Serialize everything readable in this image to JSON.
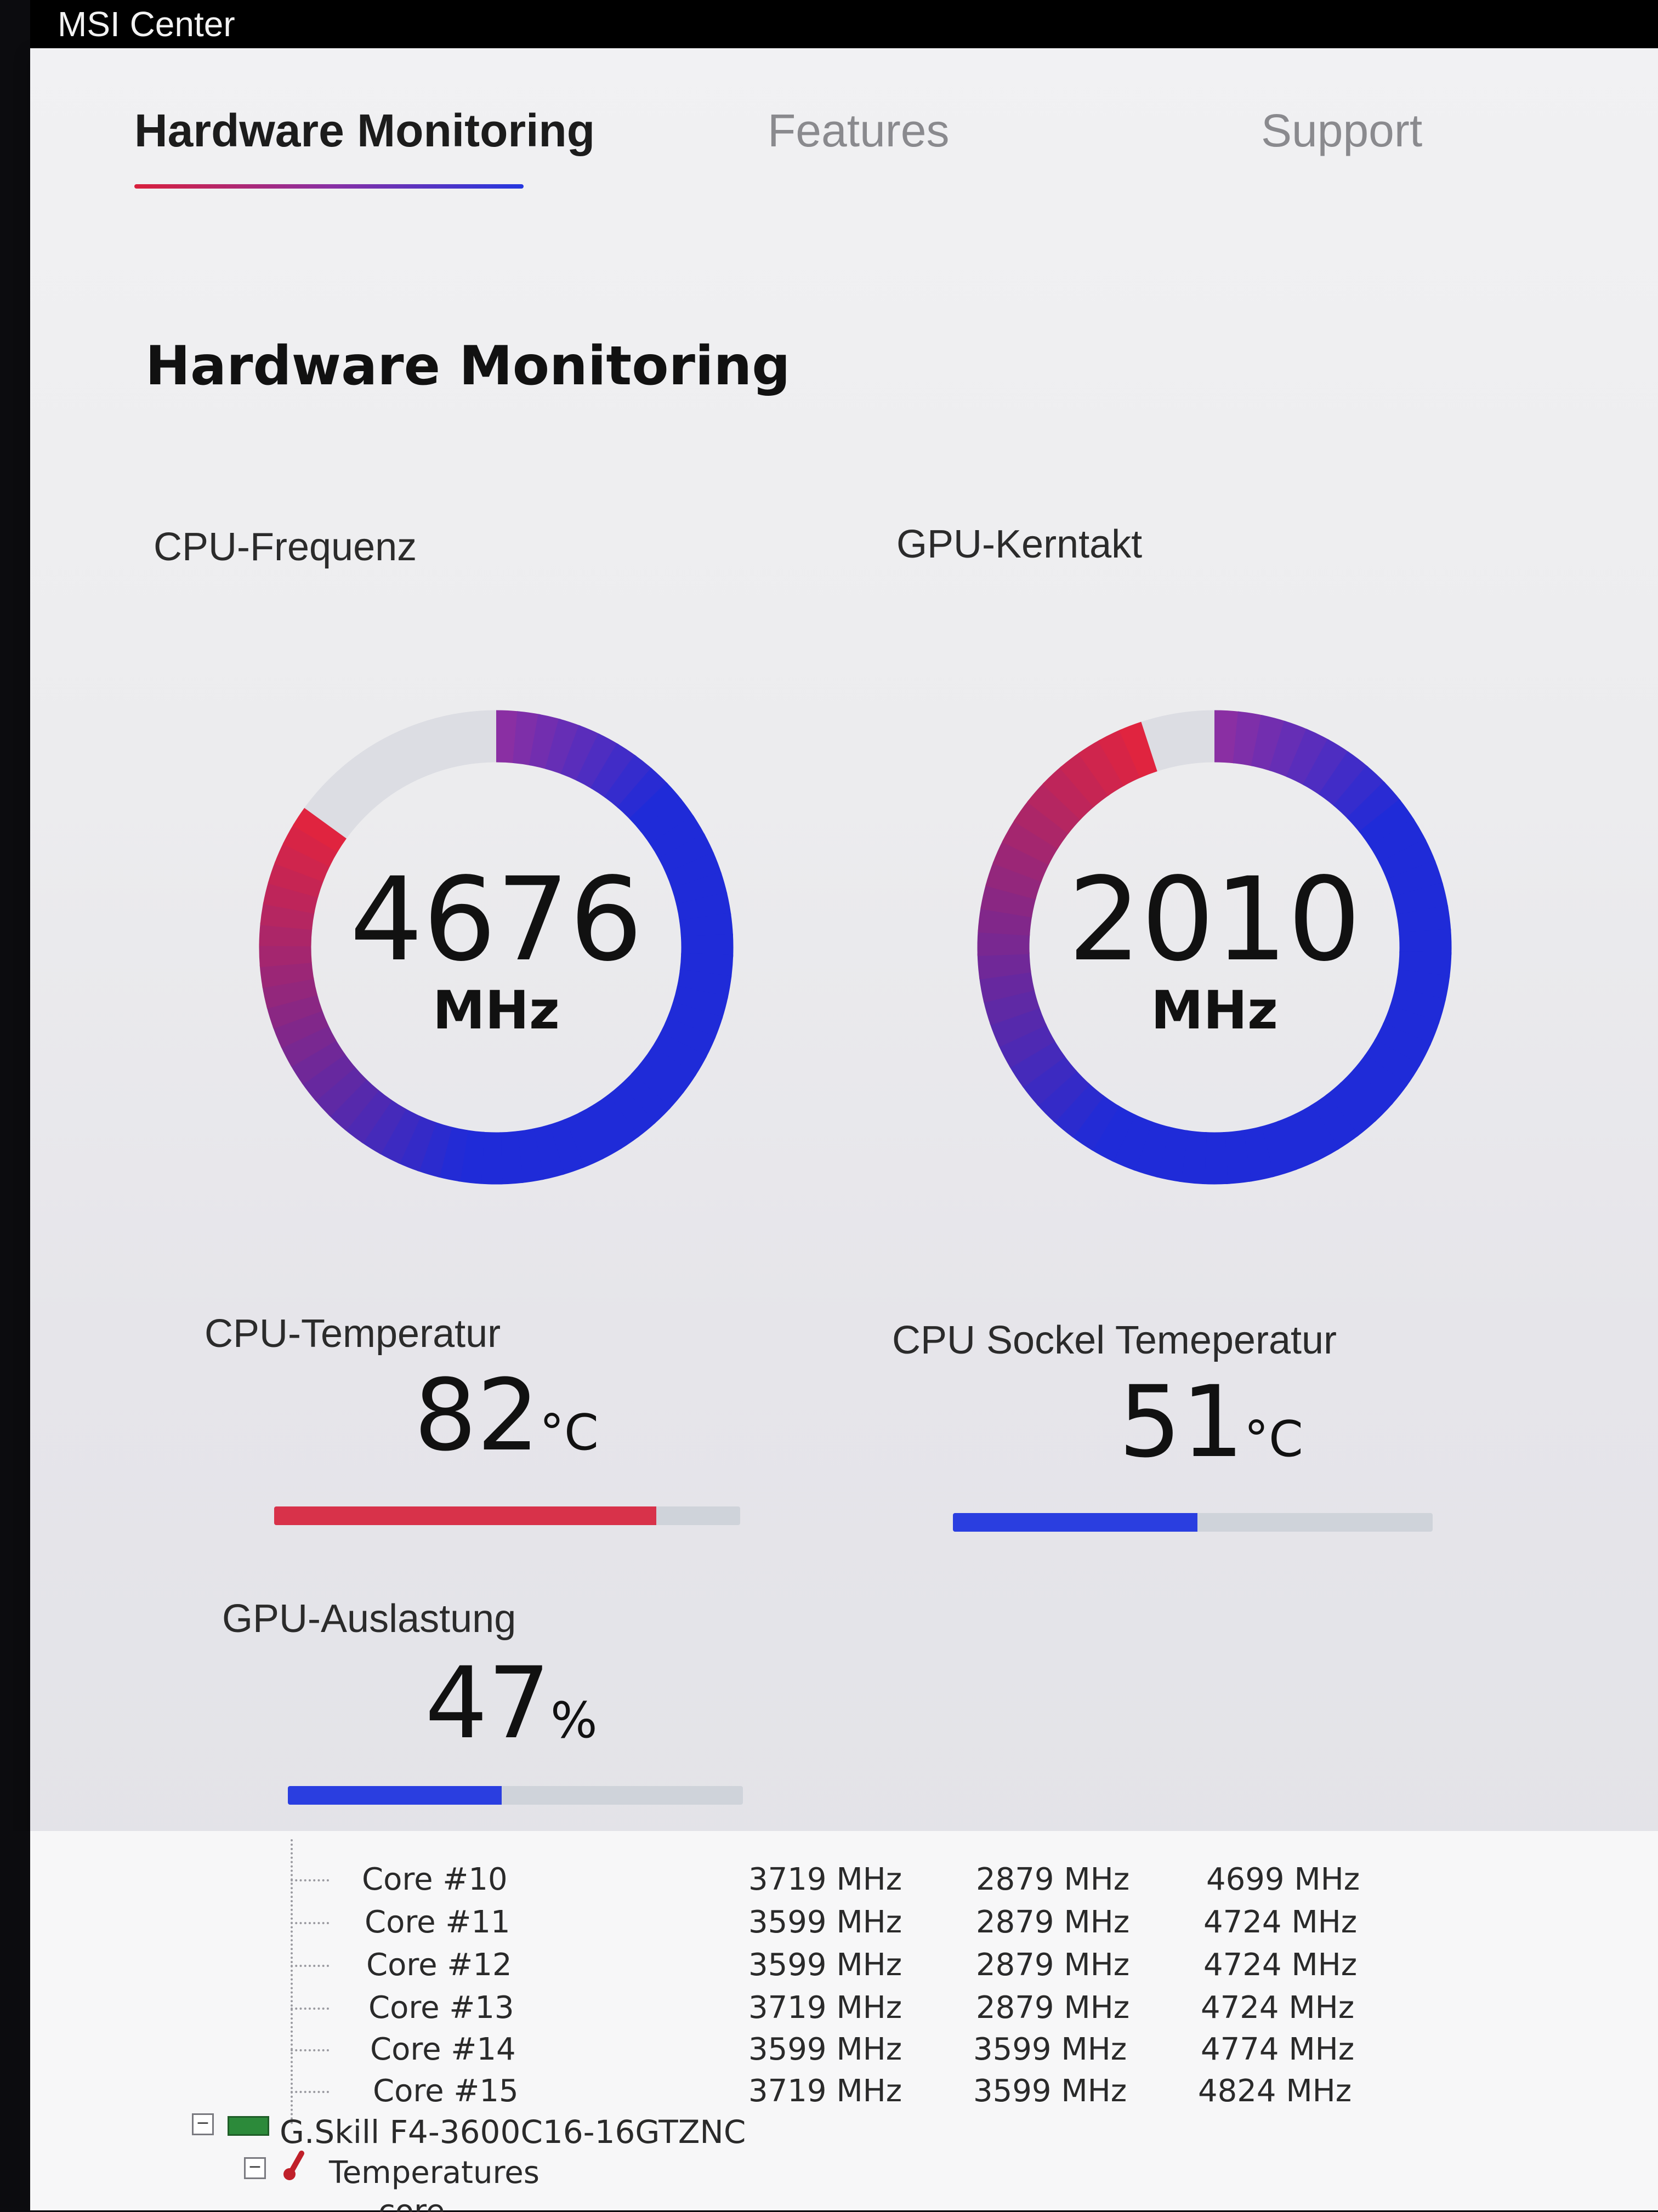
{
  "window": {
    "title": "MSI Center"
  },
  "tabs": [
    {
      "label": "Hardware Monitoring",
      "active": true
    },
    {
      "label": "Features",
      "active": false
    },
    {
      "label": "Support",
      "active": false
    }
  ],
  "section_title": "Hardware Monitoring",
  "gauges": [
    {
      "label": "CPU-Frequenz",
      "value": "4676",
      "unit": "MHz",
      "fill_fraction": 0.85
    },
    {
      "label": "GPU-Kerntakt",
      "value": "2010",
      "unit": "MHz",
      "fill_fraction": 0.95
    }
  ],
  "metrics": [
    {
      "label": "CPU-Temperatur",
      "value": "82",
      "unit": "°C",
      "fill_fraction": 0.82,
      "color": "#d8324a"
    },
    {
      "label": "CPU Sockel Temeperatur",
      "value": "51",
      "unit": "°C",
      "fill_fraction": 0.51,
      "color": "#2a3ee0"
    },
    {
      "label": "GPU-Auslastung",
      "value": "47",
      "unit": "%",
      "fill_fraction": 0.47,
      "color": "#2a3ee0"
    }
  ],
  "colors": {
    "accent_red": "#e0243f",
    "accent_blue": "#1f2bd8",
    "accent_purple": "#8a2fa3",
    "track": "#dcdde3"
  },
  "sensor_table": {
    "rows": [
      {
        "name": "Core #10",
        "current": "3719 MHz",
        "min": "2879 MHz",
        "max": "4699 MHz"
      },
      {
        "name": "Core #11",
        "current": "3599 MHz",
        "min": "2879 MHz",
        "max": "4724 MHz"
      },
      {
        "name": "Core #12",
        "current": "3599 MHz",
        "min": "2879 MHz",
        "max": "4724 MHz"
      },
      {
        "name": "Core #13",
        "current": "3719 MHz",
        "min": "2879 MHz",
        "max": "4724 MHz"
      },
      {
        "name": "Core #14",
        "current": "3599 MHz",
        "min": "3599 MHz",
        "max": "4774 MHz"
      },
      {
        "name": "Core #15",
        "current": "3719 MHz",
        "min": "3599 MHz",
        "max": "4824 MHz"
      }
    ],
    "device": "G.Skill F4-3600C16-16GTZNC",
    "group": "Temperatures",
    "partial_row": "core"
  }
}
